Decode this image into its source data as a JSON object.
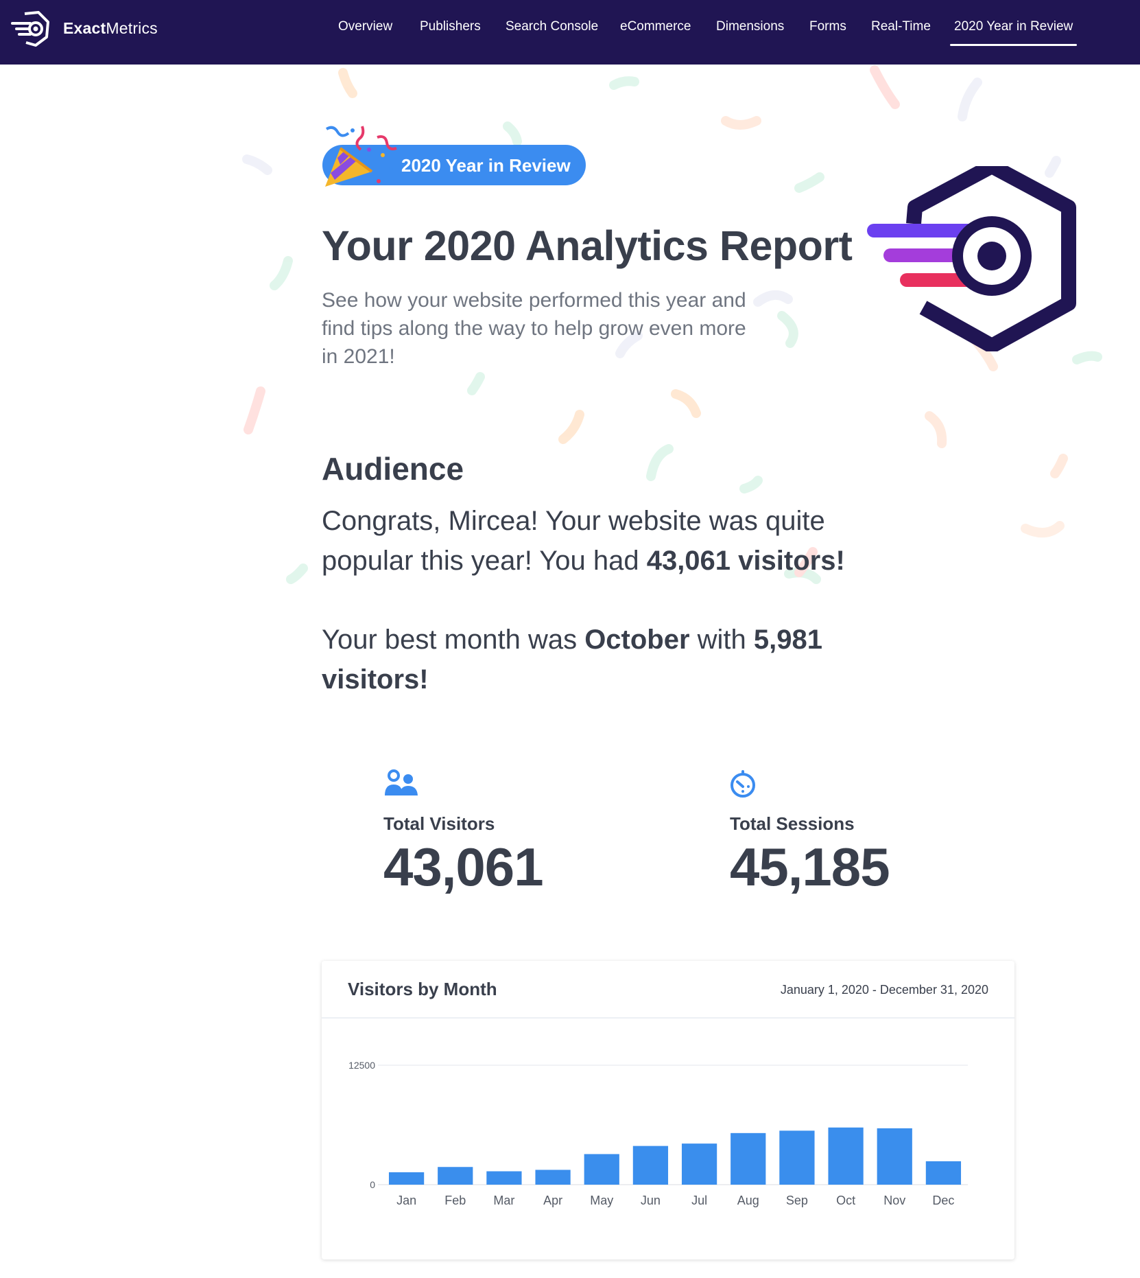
{
  "brand": {
    "name_bold": "Exact",
    "name_rest": "Metrics"
  },
  "nav": {
    "items": [
      {
        "label": "Overview",
        "active": false
      },
      {
        "label": "Publishers",
        "active": false
      },
      {
        "label": "Search Console",
        "active": false
      },
      {
        "label": "eCommerce",
        "active": false
      },
      {
        "label": "Dimensions",
        "active": false
      },
      {
        "label": "Forms",
        "active": false
      },
      {
        "label": "Real-Time",
        "active": false
      },
      {
        "label": "2020 Year in Review",
        "active": true
      }
    ]
  },
  "hero": {
    "badge": "2020 Year in Review",
    "title": "Your 2020 Analytics Report",
    "subtitle": "See how your website performed this year and find tips along the way to help grow even more in 2021!"
  },
  "audience": {
    "heading": "Audience",
    "p1_text": "Congrats, Mircea! Your website was quite popular this year! You had ",
    "p1_bold": "43,061 visitors!",
    "p2_text1": "Your best month was ",
    "p2_month": "October",
    "p2_text2": " with ",
    "p2_bold": "5,981 visitors!"
  },
  "stats": {
    "visitors": {
      "label": "Total Visitors",
      "value": "43,061",
      "icon": "users-icon"
    },
    "sessions": {
      "label": "Total Sessions",
      "value": "45,185",
      "icon": "timer-icon"
    }
  },
  "chart_card": {
    "title": "Visitors by Month",
    "date_range": "January 1, 2020 - December 31, 2020"
  },
  "colors": {
    "navbar": "#201553",
    "accent_blue": "#3b8cf0",
    "bar": "#3a8eed",
    "text_dark": "#393f4c"
  },
  "chart_data": {
    "type": "bar",
    "title": "Visitors by Month",
    "categories": [
      "Jan",
      "Feb",
      "Mar",
      "Apr",
      "May",
      "Jun",
      "Jul",
      "Aug",
      "Sep",
      "Oct",
      "Nov",
      "Dec"
    ],
    "values": [
      1300,
      1850,
      1400,
      1550,
      3200,
      4050,
      4300,
      5400,
      5650,
      5981,
      5900,
      2450
    ],
    "yticks": [
      0,
      12500
    ],
    "ylim": [
      0,
      12500
    ],
    "grid": true,
    "legend": "none"
  }
}
